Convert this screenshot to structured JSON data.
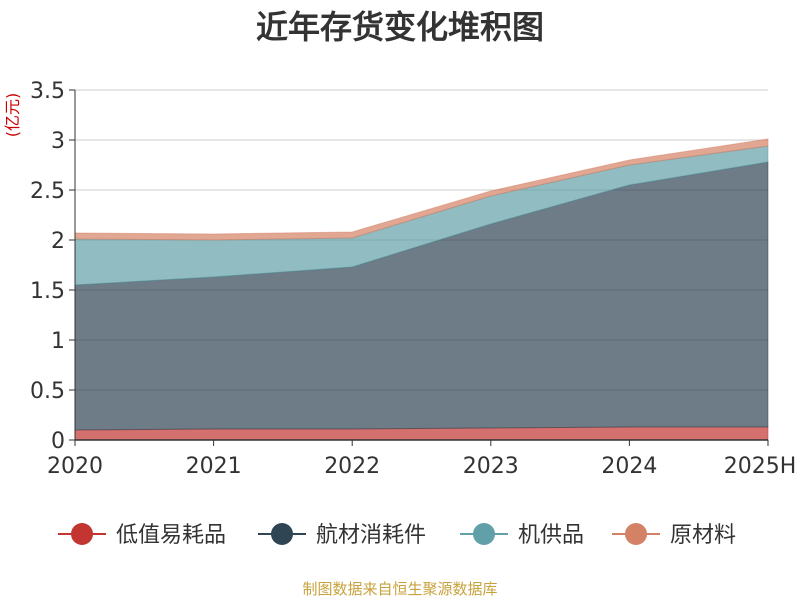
{
  "chart_data": {
    "type": "area",
    "stacked": true,
    "title": "近年存货变化堆积图",
    "unit_label": "(亿元)",
    "categories": [
      "2020",
      "2021",
      "2022",
      "2023",
      "2024",
      "2025H"
    ],
    "y_ticks": [
      "0",
      "0.5",
      "1",
      "1.5",
      "2",
      "2.5",
      "3",
      "3.5"
    ],
    "ylim": [
      0,
      3.5
    ],
    "grid": true,
    "legend_position": "bottom",
    "series": [
      {
        "name": "低值易耗品",
        "color": "#c23531",
        "values": [
          0.1,
          0.11,
          0.11,
          0.12,
          0.13,
          0.13
        ]
      },
      {
        "name": "航材消耗件",
        "color": "#2f4554",
        "values": [
          1.45,
          1.52,
          1.62,
          2.04,
          2.42,
          2.65
        ]
      },
      {
        "name": "机供品",
        "color": "#61a0a8",
        "values": [
          0.46,
          0.37,
          0.29,
          0.28,
          0.2,
          0.16
        ]
      },
      {
        "name": "原材料",
        "color": "#d48265",
        "values": [
          0.06,
          0.06,
          0.06,
          0.05,
          0.05,
          0.07
        ]
      }
    ]
  },
  "source": "制图数据来自恒生聚源数据库"
}
